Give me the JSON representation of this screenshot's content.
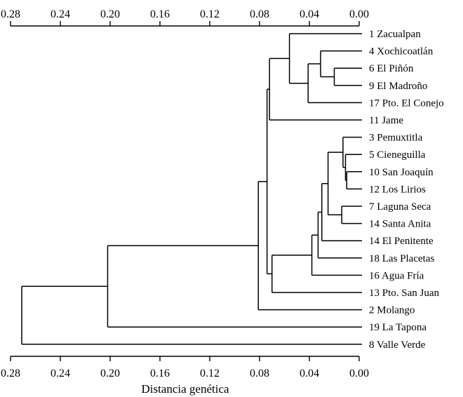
{
  "chart_data": {
    "type": "dendrogram",
    "xlabel": "Distancia genética",
    "xlim": [
      0.28,
      0.0
    ],
    "ticks": [
      "0.28",
      "0.24",
      "0.20",
      "0.16",
      "0.12",
      "0.08",
      "0.04",
      "0.00"
    ],
    "tick_values": [
      0.28,
      0.24,
      0.2,
      0.16,
      0.12,
      0.08,
      0.04,
      0.0
    ],
    "leaves": [
      "1 Zacualpan",
      "4 Xochicoatlán",
      "6 El Piñón",
      "9 El Madroño",
      "17 Pto. El Conejo",
      "11 Jame",
      "3 Pemuxtitla",
      "5 Cieneguilla",
      "10 San Joaquín",
      "12 Los Lirios",
      "7 Laguna Seca",
      "14 Santa Anita",
      "14 El Penitente",
      "18 Las Placetas",
      "16 Agua Fría",
      "13 Pto. San Juan",
      "2 Molango",
      "19 La Tapona",
      "8 Valle Verde"
    ],
    "merges": [
      {
        "a": 2,
        "b": 3,
        "height": 0.02
      },
      {
        "a": 1,
        "b": "m0",
        "height": 0.031
      },
      {
        "a": "m1",
        "b": 4,
        "height": 0.041
      },
      {
        "a": 0,
        "b": "m2",
        "height": 0.056
      },
      {
        "a": "m3",
        "b": 5,
        "height": 0.072
      },
      {
        "a": 8,
        "b": 9,
        "height": 0.01
      },
      {
        "a": 7,
        "b": "m5",
        "height": 0.011
      },
      {
        "a": 6,
        "b": "m6",
        "height": 0.013
      },
      {
        "a": 10,
        "b": 11,
        "height": 0.014
      },
      {
        "a": "m7",
        "b": "m8",
        "height": 0.025
      },
      {
        "a": "m9",
        "b": 12,
        "height": 0.03
      },
      {
        "a": "m10",
        "b": 13,
        "height": 0.033
      },
      {
        "a": "m11",
        "b": 14,
        "height": 0.038
      },
      {
        "a": "m12",
        "b": 15,
        "height": 0.07
      },
      {
        "a": "m4",
        "b": "m13",
        "height": 0.074
      },
      {
        "a": "m14",
        "b": 16,
        "height": 0.081
      },
      {
        "a": "m15",
        "b": 17,
        "height": 0.202
      },
      {
        "a": "m16",
        "b": 18,
        "height": 0.271
      }
    ],
    "colors": {
      "line": "#000000",
      "background": "#ffffff"
    }
  }
}
